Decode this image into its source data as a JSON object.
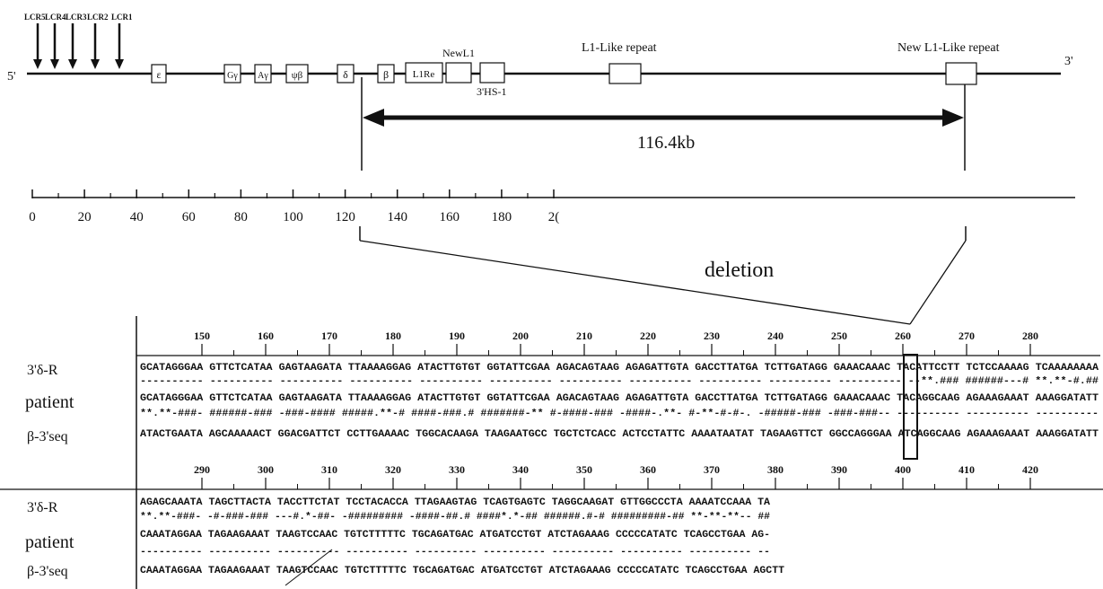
{
  "map": {
    "five_prime": "5'",
    "three_prime": "3'",
    "lcr_labels": [
      "LCR5",
      "LCR4",
      "LCR3",
      "LCR2",
      "LCR1"
    ],
    "genes": [
      "ε",
      "Gγ",
      "Aγ",
      "ψβ",
      "δ",
      "β"
    ],
    "l1re_label": "L1Re",
    "newl1_label": "NewL1",
    "hs1_label": "3'HS-1",
    "l1like_label": "L1-Like repeat",
    "new_l1like_label": "New L1-Like repeat",
    "deletion_size": "116.4kb",
    "deletion_label": "deletion"
  },
  "scale": {
    "ticks": [
      "0",
      "20",
      "40",
      "60",
      "80",
      "100",
      "120",
      "140",
      "160",
      "180",
      "2("
    ]
  },
  "alignment": {
    "block1": {
      "ruler": [
        "150",
        "160",
        "170",
        "180",
        "190",
        "200",
        "210",
        "220",
        "230",
        "240",
        "250",
        "260",
        "270",
        "280"
      ],
      "ref": "GCATAGGGAA GTTCTCATAA GAGTAAGATA TTAAAAGGAG ATACTTGTGT GGTATTCGAA AGACAGTAAG AGAGATTGTA GACCTTATGA TCTTGATAGG GAAACAAAC TACATTCCTT TCTCCAAAAG TCAAAAAAAA",
      "ref_match": "---------- ---------- ---------- ---------- ---------- ---------- ---------- ---------- ---------- ---------- ---------- --**.### ######---# **.**-#.##",
      "patient": "GCATAGGGAA GTTCTCATAA GAGTAAGATA TTAAAAGGAG ATACTTGTGT GGTATTCGAA AGACAGTAAG AGAGATTGTA GACCTTATGA TCTTGATAGG GAAACAAAC TACAGGCAAG AGAAAGAAAT AAAGGATATT",
      "beta_match": "**.**-###- ######-### -###-#### #####.**-# ####-###.# #######-** #-####-### -####-.**- #-**-#-#-. -#####-### -###-###-- ---------- ---------- ----------",
      "beta": "ATACTGAATA AGCAAAAACT GGACGATTCT CCTTGAAAAC TGGCACAAGA TAAGAATGCC TGCTCTCACC ACTCCTATTC AAAATAATAT TAGAAGTTCT GGCCAGGGAA ATCAGGCAAG AGAAAGAAAT AAAGGATATT"
    },
    "block2": {
      "ruler": [
        "290",
        "300",
        "310",
        "320",
        "330",
        "340",
        "350",
        "360",
        "370",
        "380",
        "390",
        "400",
        "410",
        "420"
      ],
      "ref": "AGAGCAAATA TAGCTTACTA TACCTTCTAT TCCTACACCA TTAGAAGTAG TCAGTGAGTC TAGGCAAGAT GTTGGCCCTA AAAATCCAAA TA",
      "ref_match": "**.**-###- -#-###-### ---#.*-##- -######### -####-##.# ####*.*-## ######.#-# #########-## **-**-**-- ##",
      "patient": "CAAATAGGAA TAGAAGAAAT TAAGTCCAAC TGTCTTTTTC TGCAGATGAC ATGATCCTGT ATCTAGAAAG CCCCCATATC TCAGCCTGAA AG-",
      "beta_match": "---------- ---------- ---------- ---------- ---------- ---------- ---------- ---------- ---------- --",
      "beta": "CAAATAGGAA TAGAAGAAAT TAAGTCCAAC TGTCTTTTTC TGCAGATGAC ATGATCCTGT ATCTAGAAAG CCCCCATATC TCAGCCTGAA AGCTT"
    },
    "row_labels": {
      "ref": "3'δ-R",
      "patient": "patient",
      "beta": "β-3'seq"
    }
  }
}
